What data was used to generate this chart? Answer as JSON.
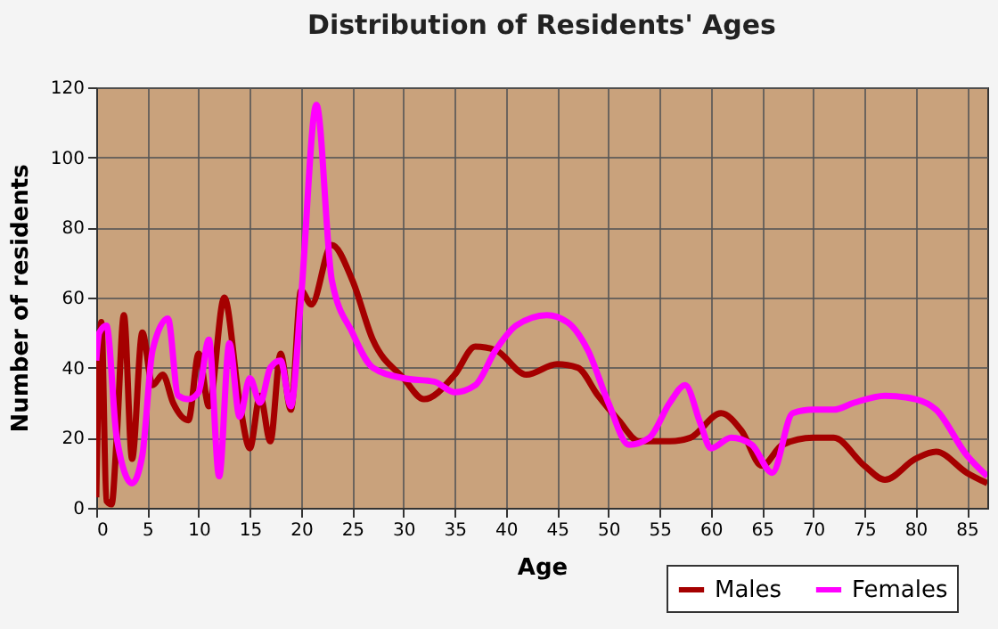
{
  "chart_data": {
    "type": "line",
    "title": "Distribution of Residents' Ages",
    "xlabel": "Age",
    "ylabel": "Number of residents",
    "xlim": [
      0,
      87
    ],
    "xticks": [
      0,
      5,
      10,
      15,
      20,
      25,
      30,
      35,
      40,
      45,
      50,
      55,
      60,
      65,
      70,
      75,
      80,
      85
    ],
    "ylim": [
      0,
      120
    ],
    "yticks": [
      0,
      20,
      40,
      60,
      80,
      100,
      120
    ],
    "grid": true,
    "legend": "bottom right",
    "series": [
      {
        "name": "Males",
        "color": "#a50000",
        "x": [
          0,
          0.5,
          1,
          1.5,
          2,
          2.7,
          3.5,
          4.5,
          5.5,
          6.5,
          7.5,
          9,
          10,
          11,
          12.5,
          14,
          15,
          16,
          17,
          18,
          19,
          20,
          21,
          23,
          25,
          27,
          30,
          32,
          35,
          37,
          39,
          42,
          45,
          47,
          49,
          51,
          53,
          56,
          58,
          61,
          63,
          65,
          67,
          70,
          72,
          75,
          77,
          80,
          82,
          85,
          87
        ],
        "values": [
          3,
          53,
          2,
          1,
          20,
          55,
          14,
          50,
          35,
          38,
          30,
          25,
          44,
          29,
          60,
          30,
          17,
          32,
          19,
          44,
          28,
          62,
          58,
          75,
          65,
          48,
          37,
          31,
          38,
          46,
          45,
          38,
          41,
          40,
          32,
          25,
          19,
          19,
          20,
          27,
          22,
          12,
          18,
          20,
          20,
          12,
          8,
          14,
          16,
          10,
          7
        ]
      },
      {
        "name": "Females",
        "color": "#ff00ff",
        "x": [
          0,
          0.3,
          1,
          2,
          3.5,
          4.5,
          5.5,
          7,
          8,
          9,
          10,
          11,
          12,
          13,
          14,
          15,
          16,
          17,
          18,
          19,
          20,
          21.5,
          23,
          25,
          27,
          30,
          33,
          35,
          37,
          39,
          41,
          44,
          46,
          48,
          50,
          52,
          54,
          56,
          57.5,
          59,
          60,
          62,
          64,
          66,
          68,
          70,
          72,
          74,
          77,
          80,
          82,
          85,
          87
        ],
        "values": [
          42,
          50,
          52,
          20,
          7,
          15,
          45,
          54,
          32,
          31,
          33,
          48,
          9,
          47,
          26,
          37,
          30,
          40,
          42,
          29,
          60,
          115,
          65,
          50,
          40,
          37,
          36,
          33,
          35,
          45,
          52,
          55,
          53,
          45,
          30,
          18,
          20,
          30,
          35,
          24,
          17,
          20,
          18,
          10,
          27,
          28,
          28,
          30,
          32,
          31,
          28,
          15,
          9
        ]
      }
    ]
  }
}
